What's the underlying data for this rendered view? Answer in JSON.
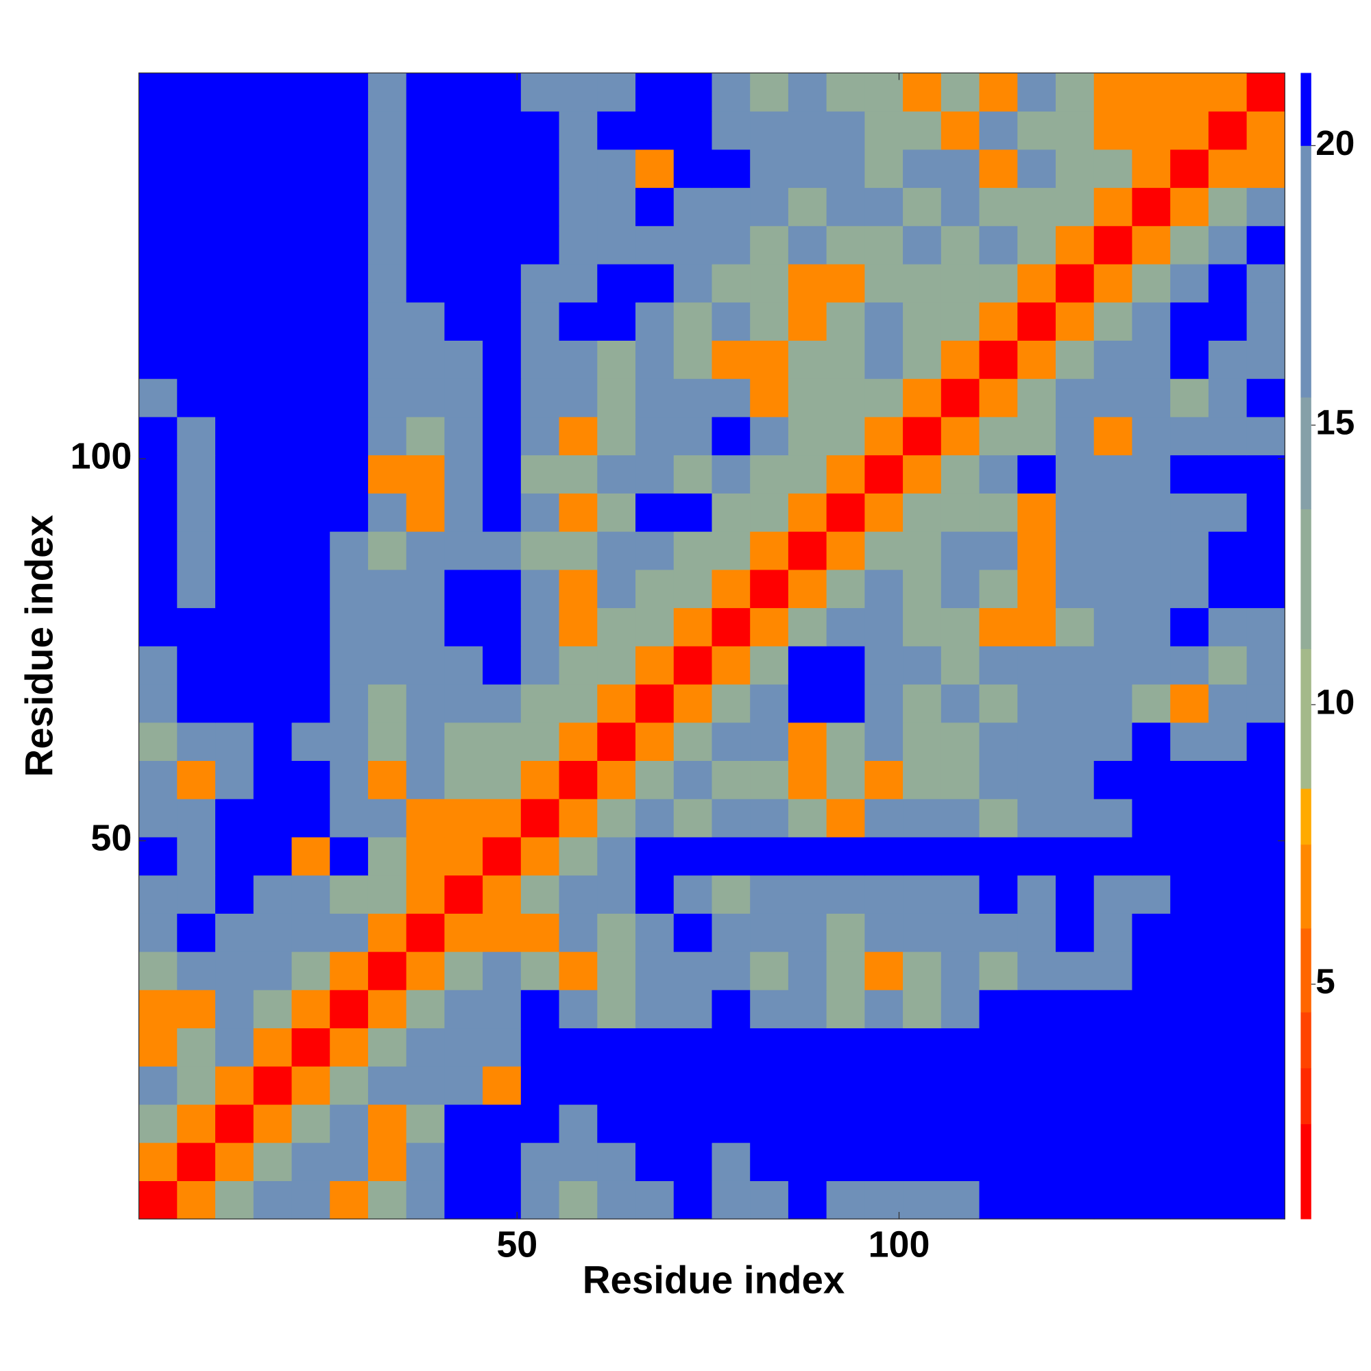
{
  "chart_data": {
    "type": "heatmap",
    "x_label": "Residue index",
    "y_label": "Residue index",
    "x": [
      3,
      8,
      13,
      18,
      23,
      28,
      33,
      38,
      43,
      48,
      53,
      58,
      63,
      68,
      73,
      78,
      83,
      88,
      93,
      98,
      103,
      108,
      113,
      118,
      123,
      128,
      133,
      138,
      143,
      148
    ],
    "y": [
      3,
      8,
      13,
      18,
      23,
      28,
      33,
      38,
      43,
      48,
      53,
      58,
      63,
      68,
      73,
      78,
      83,
      88,
      93,
      98,
      103,
      108,
      113,
      118,
      123,
      128,
      133,
      138,
      143,
      148
    ],
    "xlim": [
      0.5,
      150.5
    ],
    "ylim": [
      0.5,
      150.5
    ],
    "xticks": [
      50,
      100
    ],
    "yticks": [
      50,
      100
    ],
    "zlim": [
      0.8,
      21.3
    ],
    "zticks": [
      5,
      10,
      15,
      20
    ],
    "colorbar": {
      "bounds": [
        2.5,
        3.5,
        4.5,
        6,
        7.5,
        8.5,
        11,
        13.5,
        15.5,
        20
      ],
      "colors": [
        "#ff0000",
        "#ff2a00",
        "#ff4400",
        "#ff6600",
        "#ff8800",
        "#ffaa00",
        "#a4b98a",
        "#93ad98",
        "#85a0a8",
        "#6f90b8",
        "#0000ff"
      ]
    },
    "z": [
      [
        2,
        7,
        12,
        17,
        17,
        7,
        12,
        17,
        21,
        21,
        17,
        12,
        17,
        17,
        21,
        17,
        17,
        21,
        17,
        17,
        17,
        17,
        21,
        21,
        21,
        21,
        21,
        21,
        21,
        21
      ],
      [
        7,
        2,
        7,
        12,
        17,
        17,
        7,
        17,
        21,
        21,
        17,
        17,
        17,
        21,
        21,
        17,
        21,
        21,
        21,
        21,
        21,
        21,
        21,
        21,
        21,
        21,
        21,
        21,
        21,
        21
      ],
      [
        12,
        7,
        2,
        7,
        12,
        17,
        7,
        12,
        21,
        21,
        21,
        17,
        21,
        21,
        21,
        21,
        21,
        21,
        21,
        21,
        21,
        21,
        21,
        21,
        21,
        21,
        21,
        21,
        21,
        21
      ],
      [
        17,
        12,
        7,
        2,
        7,
        12,
        17,
        17,
        17,
        7,
        21,
        21,
        21,
        21,
        21,
        21,
        21,
        21,
        21,
        21,
        21,
        21,
        21,
        21,
        21,
        21,
        21,
        21,
        21,
        21
      ],
      [
        7,
        12,
        17,
        7,
        2,
        7,
        12,
        17,
        17,
        17,
        21,
        21,
        21,
        21,
        21,
        21,
        21,
        21,
        21,
        21,
        21,
        21,
        21,
        21,
        21,
        21,
        21,
        21,
        21,
        21
      ],
      [
        7,
        7,
        17,
        12,
        7,
        2,
        7,
        12,
        17,
        17,
        21,
        17,
        12,
        17,
        17,
        21,
        17,
        17,
        12,
        17,
        12,
        17,
        21,
        21,
        21,
        21,
        21,
        21,
        21,
        21
      ],
      [
        12,
        17,
        17,
        17,
        12,
        7,
        2,
        7,
        12,
        17,
        12,
        7,
        12,
        17,
        17,
        17,
        12,
        17,
        12,
        7,
        12,
        17,
        12,
        17,
        17,
        17,
        21,
        21,
        21,
        21
      ],
      [
        17,
        21,
        17,
        17,
        17,
        17,
        7,
        2,
        7,
        7,
        7,
        17,
        12,
        17,
        21,
        17,
        17,
        17,
        12,
        17,
        17,
        17,
        17,
        17,
        21,
        17,
        21,
        21,
        21,
        21
      ],
      [
        17,
        17,
        21,
        17,
        17,
        12,
        12,
        7,
        2,
        7,
        12,
        17,
        17,
        21,
        17,
        12,
        17,
        17,
        17,
        17,
        17,
        17,
        21,
        17,
        21,
        17,
        17,
        21,
        21,
        21
      ],
      [
        21,
        17,
        21,
        21,
        7,
        21,
        12,
        7,
        7,
        2,
        7,
        12,
        17,
        21,
        21,
        21,
        21,
        21,
        21,
        21,
        21,
        21,
        21,
        21,
        21,
        21,
        21,
        21,
        21,
        21
      ],
      [
        17,
        17,
        21,
        21,
        21,
        17,
        17,
        7,
        7,
        7,
        2,
        7,
        12,
        17,
        12,
        17,
        17,
        12,
        7,
        17,
        17,
        17,
        12,
        17,
        17,
        17,
        21,
        21,
        21,
        21
      ],
      [
        17,
        7,
        17,
        21,
        21,
        17,
        7,
        17,
        12,
        12,
        7,
        2,
        7,
        12,
        17,
        12,
        12,
        7,
        12,
        7,
        12,
        12,
        17,
        17,
        17,
        21,
        21,
        21,
        21,
        21
      ],
      [
        12,
        17,
        17,
        21,
        17,
        17,
        12,
        17,
        12,
        12,
        12,
        7,
        2,
        7,
        12,
        17,
        17,
        7,
        12,
        17,
        12,
        12,
        17,
        17,
        17,
        17,
        21,
        17,
        17,
        21
      ],
      [
        17,
        21,
        21,
        21,
        21,
        17,
        12,
        17,
        17,
        17,
        12,
        12,
        7,
        2,
        7,
        12,
        17,
        21,
        21,
        17,
        12,
        17,
        12,
        17,
        17,
        17,
        12,
        7,
        17,
        17
      ],
      [
        17,
        21,
        21,
        21,
        21,
        17,
        17,
        17,
        17,
        21,
        17,
        12,
        12,
        7,
        2,
        7,
        12,
        21,
        21,
        17,
        17,
        12,
        17,
        17,
        17,
        17,
        17,
        17,
        12,
        17
      ],
      [
        21,
        21,
        21,
        21,
        21,
        17,
        17,
        17,
        21,
        21,
        17,
        7,
        12,
        12,
        7,
        2,
        7,
        12,
        17,
        17,
        12,
        12,
        7,
        7,
        12,
        17,
        17,
        21,
        17,
        17
      ],
      [
        21,
        17,
        21,
        21,
        21,
        17,
        17,
        17,
        21,
        21,
        17,
        7,
        17,
        12,
        12,
        7,
        2,
        7,
        12,
        17,
        12,
        17,
        12,
        7,
        17,
        17,
        17,
        17,
        21,
        21
      ],
      [
        21,
        17,
        21,
        21,
        21,
        17,
        12,
        17,
        17,
        17,
        12,
        12,
        17,
        17,
        12,
        12,
        7,
        2,
        7,
        12,
        12,
        17,
        17,
        7,
        17,
        17,
        17,
        17,
        21,
        21
      ],
      [
        21,
        17,
        21,
        21,
        21,
        21,
        17,
        7,
        17,
        21,
        17,
        7,
        12,
        21,
        21,
        12,
        12,
        7,
        2,
        7,
        12,
        12,
        12,
        7,
        17,
        17,
        17,
        17,
        17,
        21
      ],
      [
        21,
        17,
        21,
        21,
        21,
        21,
        7,
        7,
        17,
        21,
        12,
        12,
        17,
        17,
        12,
        17,
        12,
        12,
        7,
        2,
        7,
        12,
        17,
        21,
        17,
        17,
        17,
        21,
        21,
        21
      ],
      [
        21,
        17,
        21,
        21,
        21,
        21,
        17,
        12,
        17,
        21,
        17,
        7,
        12,
        17,
        17,
        21,
        17,
        12,
        12,
        7,
        2,
        7,
        12,
        12,
        17,
        7,
        17,
        17,
        17,
        17
      ],
      [
        17,
        21,
        21,
        21,
        21,
        21,
        17,
        17,
        17,
        21,
        17,
        17,
        12,
        17,
        17,
        17,
        7,
        12,
        12,
        12,
        7,
        2,
        7,
        12,
        17,
        17,
        17,
        12,
        17,
        21
      ],
      [
        21,
        21,
        21,
        21,
        21,
        21,
        17,
        17,
        17,
        21,
        17,
        17,
        12,
        17,
        12,
        7,
        7,
        12,
        12,
        17,
        12,
        7,
        2,
        7,
        12,
        17,
        17,
        21,
        17,
        17
      ],
      [
        21,
        21,
        21,
        21,
        21,
        21,
        17,
        17,
        21,
        21,
        17,
        21,
        21,
        17,
        12,
        17,
        12,
        7,
        12,
        17,
        12,
        12,
        7,
        2,
        7,
        12,
        17,
        21,
        21,
        17
      ],
      [
        21,
        21,
        21,
        21,
        21,
        21,
        17,
        21,
        21,
        21,
        17,
        17,
        21,
        21,
        17,
        12,
        12,
        7,
        7,
        12,
        12,
        12,
        12,
        7,
        2,
        7,
        12,
        17,
        21,
        17
      ],
      [
        21,
        21,
        21,
        21,
        21,
        21,
        17,
        21,
        21,
        21,
        21,
        17,
        17,
        17,
        17,
        17,
        12,
        17,
        12,
        12,
        17,
        12,
        17,
        12,
        7,
        2,
        7,
        12,
        17,
        21
      ],
      [
        21,
        21,
        21,
        21,
        21,
        21,
        17,
        21,
        21,
        21,
        21,
        17,
        17,
        21,
        17,
        17,
        17,
        12,
        17,
        17,
        12,
        17,
        12,
        12,
        12,
        7,
        2,
        7,
        12,
        17
      ],
      [
        21,
        21,
        21,
        21,
        21,
        21,
        17,
        21,
        21,
        21,
        21,
        17,
        17,
        7,
        21,
        21,
        17,
        17,
        17,
        12,
        17,
        17,
        7,
        17,
        12,
        12,
        7,
        2,
        7,
        7
      ],
      [
        21,
        21,
        21,
        21,
        21,
        21,
        17,
        21,
        21,
        21,
        21,
        17,
        21,
        21,
        21,
        17,
        17,
        17,
        17,
        12,
        12,
        7,
        17,
        12,
        12,
        7,
        7,
        7,
        2,
        7
      ],
      [
        21,
        21,
        21,
        21,
        21,
        21,
        17,
        21,
        21,
        21,
        17,
        17,
        17,
        21,
        21,
        17,
        12,
        17,
        12,
        12,
        7,
        12,
        7,
        17,
        12,
        7,
        7,
        7,
        7,
        2
      ]
    ]
  }
}
